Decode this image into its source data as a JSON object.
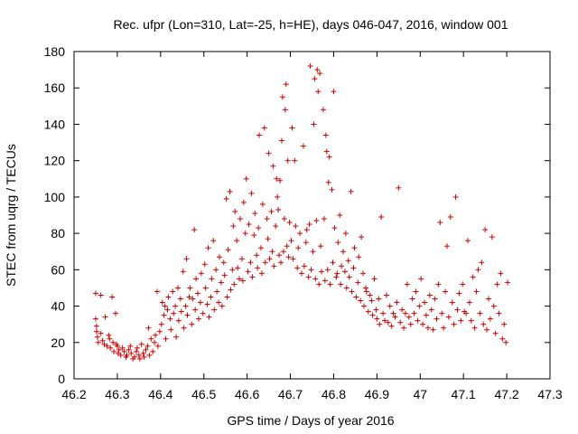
{
  "chart_data": {
    "type": "scatter",
    "title": "Rec. ufpr (Lon=310, Lat=-25, h=HE), days 046-047, 2016, window 001",
    "xlabel": "GPS time / Days of year 2016",
    "ylabel": "STEC from uqrg / TECUs",
    "xlim": [
      46.2,
      47.3
    ],
    "ylim": [
      0,
      180
    ],
    "xticks": [
      "46.2",
      "46.3",
      "46.4",
      "46.5",
      "46.6",
      "46.7",
      "46.8",
      "46.9",
      "47",
      "47.1",
      "47.2",
      "47.3"
    ],
    "yticks": [
      "0",
      "20",
      "40",
      "60",
      "80",
      "100",
      "120",
      "140",
      "160",
      "180"
    ],
    "marker": "+",
    "color": "#cc0000",
    "points": [
      [
        46.25,
        47
      ],
      [
        46.25,
        33
      ],
      [
        46.252,
        29
      ],
      [
        46.252,
        26
      ],
      [
        46.254,
        23
      ],
      [
        46.256,
        20
      ],
      [
        46.262,
        46
      ],
      [
        46.262,
        25
      ],
      [
        46.266,
        21
      ],
      [
        46.27,
        19
      ],
      [
        46.272,
        34
      ],
      [
        46.276,
        18
      ],
      [
        46.28,
        24
      ],
      [
        46.282,
        22
      ],
      [
        46.284,
        17
      ],
      [
        46.288,
        45
      ],
      [
        46.29,
        20
      ],
      [
        46.292,
        15
      ],
      [
        46.296,
        36
      ],
      [
        46.298,
        19
      ],
      [
        46.3,
        18
      ],
      [
        46.302,
        14
      ],
      [
        46.304,
        16
      ],
      [
        46.308,
        13
      ],
      [
        46.312,
        17
      ],
      [
        46.316,
        15
      ],
      [
        46.32,
        12
      ],
      [
        46.322,
        13
      ],
      [
        46.326,
        16
      ],
      [
        46.33,
        18
      ],
      [
        46.332,
        14
      ],
      [
        46.336,
        11
      ],
      [
        46.34,
        12
      ],
      [
        46.344,
        15
      ],
      [
        46.346,
        17
      ],
      [
        46.35,
        13
      ],
      [
        46.352,
        11
      ],
      [
        46.356,
        19
      ],
      [
        46.36,
        14
      ],
      [
        46.362,
        12
      ],
      [
        46.366,
        16
      ],
      [
        46.37,
        18
      ],
      [
        46.372,
        28
      ],
      [
        46.374,
        13
      ],
      [
        46.378,
        22
      ],
      [
        46.382,
        15
      ],
      [
        46.386,
        20
      ],
      [
        46.388,
        24
      ],
      [
        46.392,
        48
      ],
      [
        46.394,
        18
      ],
      [
        46.398,
        26
      ],
      [
        46.402,
        30
      ],
      [
        46.404,
        42
      ],
      [
        46.408,
        35
      ],
      [
        46.41,
        40
      ],
      [
        46.412,
        22
      ],
      [
        46.416,
        38
      ],
      [
        46.418,
        45
      ],
      [
        46.422,
        33
      ],
      [
        46.424,
        27
      ],
      [
        46.428,
        48
      ],
      [
        46.43,
        36
      ],
      [
        46.434,
        40
      ],
      [
        46.436,
        23
      ],
      [
        46.44,
        50
      ],
      [
        46.442,
        32
      ],
      [
        46.446,
        44
      ],
      [
        46.448,
        37
      ],
      [
        46.452,
        59
      ],
      [
        46.454,
        28
      ],
      [
        46.458,
        40
      ],
      [
        46.46,
        66
      ],
      [
        46.462,
        35
      ],
      [
        46.466,
        45
      ],
      [
        46.468,
        50
      ],
      [
        46.472,
        30
      ],
      [
        46.474,
        44
      ],
      [
        46.478,
        82
      ],
      [
        46.48,
        38
      ],
      [
        46.482,
        55
      ],
      [
        46.486,
        47
      ],
      [
        46.488,
        33
      ],
      [
        46.492,
        42
      ],
      [
        46.494,
        58
      ],
      [
        46.498,
        36
      ],
      [
        46.502,
        63
      ],
      [
        46.504,
        50
      ],
      [
        46.508,
        41
      ],
      [
        46.51,
        72
      ],
      [
        46.512,
        34
      ],
      [
        46.516,
        45
      ],
      [
        46.518,
        55
      ],
      [
        46.522,
        76
      ],
      [
        46.524,
        38
      ],
      [
        46.528,
        60
      ],
      [
        46.53,
        48
      ],
      [
        46.534,
        42
      ],
      [
        46.536,
        67
      ],
      [
        46.54,
        53
      ],
      [
        46.542,
        40
      ],
      [
        46.546,
        64
      ],
      [
        46.548,
        57
      ],
      [
        46.552,
        99
      ],
      [
        46.554,
        45
      ],
      [
        46.556,
        71
      ],
      [
        46.56,
        103
      ],
      [
        46.562,
        49
      ],
      [
        46.566,
        60
      ],
      [
        46.568,
        84
      ],
      [
        46.57,
        52
      ],
      [
        46.572,
        92
      ],
      [
        46.576,
        76
      ],
      [
        46.578,
        61
      ],
      [
        46.582,
        55
      ],
      [
        46.584,
        88
      ],
      [
        46.588,
        66
      ],
      [
        46.59,
        54
      ],
      [
        46.592,
        97
      ],
      [
        46.596,
        80
      ],
      [
        46.598,
        110
      ],
      [
        46.602,
        59
      ],
      [
        46.604,
        85
      ],
      [
        46.608,
        64
      ],
      [
        46.61,
        102
      ],
      [
        46.612,
        56
      ],
      [
        46.616,
        79
      ],
      [
        46.618,
        91
      ],
      [
        46.622,
        68
      ],
      [
        46.624,
        61
      ],
      [
        46.626,
        83
      ],
      [
        46.628,
        134
      ],
      [
        46.632,
        72
      ],
      [
        46.634,
        58
      ],
      [
        46.636,
        96
      ],
      [
        46.64,
        138
      ],
      [
        46.642,
        64
      ],
      [
        46.646,
        88
      ],
      [
        46.648,
        77
      ],
      [
        46.65,
        124
      ],
      [
        46.652,
        66
      ],
      [
        46.656,
        92
      ],
      [
        46.658,
        70
      ],
      [
        46.66,
        117
      ],
      [
        46.662,
        62
      ],
      [
        46.666,
        84
      ],
      [
        46.668,
        110
      ],
      [
        46.67,
        100
      ],
      [
        46.672,
        93
      ],
      [
        46.674,
        68
      ],
      [
        46.676,
        109
      ],
      [
        46.678,
        64
      ],
      [
        46.68,
        131
      ],
      [
        46.682,
        155
      ],
      [
        46.684,
        70
      ],
      [
        46.686,
        88
      ],
      [
        46.688,
        148
      ],
      [
        46.69,
        162
      ],
      [
        46.692,
        73
      ],
      [
        46.694,
        120
      ],
      [
        46.696,
        67
      ],
      [
        46.698,
        86
      ],
      [
        46.702,
        76
      ],
      [
        46.704,
        138
      ],
      [
        46.706,
        66
      ],
      [
        46.71,
        120
      ],
      [
        46.712,
        84
      ],
      [
        46.716,
        61
      ],
      [
        46.718,
        72
      ],
      [
        46.722,
        80
      ],
      [
        46.726,
        58
      ],
      [
        46.73,
        128
      ],
      [
        46.732,
        62
      ],
      [
        46.736,
        75
      ],
      [
        46.738,
        82
      ],
      [
        46.742,
        56
      ],
      [
        46.744,
        85
      ],
      [
        46.746,
        172
      ],
      [
        46.748,
        60
      ],
      [
        46.752,
        70
      ],
      [
        46.754,
        140
      ],
      [
        46.756,
        165
      ],
      [
        46.758,
        55
      ],
      [
        46.76,
        87
      ],
      [
        46.762,
        170
      ],
      [
        46.764,
        158
      ],
      [
        46.766,
        52
      ],
      [
        46.768,
        168
      ],
      [
        46.77,
        73
      ],
      [
        46.772,
        59
      ],
      [
        46.776,
        148
      ],
      [
        46.778,
        88
      ],
      [
        46.78,
        54
      ],
      [
        46.782,
        134
      ],
      [
        46.784,
        125
      ],
      [
        46.786,
        60
      ],
      [
        46.788,
        108
      ],
      [
        46.79,
        122
      ],
      [
        46.792,
        52
      ],
      [
        46.796,
        104
      ],
      [
        46.798,
        64
      ],
      [
        46.8,
        158
      ],
      [
        46.802,
        83
      ],
      [
        46.806,
        56
      ],
      [
        46.808,
        58
      ],
      [
        46.81,
        75
      ],
      [
        46.814,
        90
      ],
      [
        46.816,
        52
      ],
      [
        46.818,
        62
      ],
      [
        46.822,
        70
      ],
      [
        46.826,
        59
      ],
      [
        46.828,
        80
      ],
      [
        46.83,
        50
      ],
      [
        46.834,
        65
      ],
      [
        46.836,
        56
      ],
      [
        46.84,
        103
      ],
      [
        46.842,
        48
      ],
      [
        46.846,
        61
      ],
      [
        46.848,
        72
      ],
      [
        46.852,
        45
      ],
      [
        46.856,
        53
      ],
      [
        46.858,
        67
      ],
      [
        46.862,
        43
      ],
      [
        46.864,
        78
      ],
      [
        46.868,
        58
      ],
      [
        46.87,
        40
      ],
      [
        46.874,
        50
      ],
      [
        46.876,
        48
      ],
      [
        46.88,
        37
      ],
      [
        46.884,
        46
      ],
      [
        46.888,
        43
      ],
      [
        46.89,
        35
      ],
      [
        46.894,
        55
      ],
      [
        46.898,
        38
      ],
      [
        46.9,
        33
      ],
      [
        46.904,
        44
      ],
      [
        46.906,
        30
      ],
      [
        46.91,
        89
      ],
      [
        46.914,
        36
      ],
      [
        46.918,
        32
      ],
      [
        46.922,
        46
      ],
      [
        46.926,
        31
      ],
      [
        46.93,
        40
      ],
      [
        46.934,
        29
      ],
      [
        46.938,
        36
      ],
      [
        46.942,
        34
      ],
      [
        46.946,
        42
      ],
      [
        46.95,
        105
      ],
      [
        46.954,
        31
      ],
      [
        46.958,
        38
      ],
      [
        46.962,
        28
      ],
      [
        46.966,
        36
      ],
      [
        46.97,
        52
      ],
      [
        46.974,
        34
      ],
      [
        46.978,
        30
      ],
      [
        46.982,
        44
      ],
      [
        46.986,
        36
      ],
      [
        46.99,
        48
      ],
      [
        46.994,
        32
      ],
      [
        46.998,
        40
      ],
      [
        47.002,
        55
      ],
      [
        47.006,
        30
      ],
      [
        47.01,
        42
      ],
      [
        47.014,
        35
      ],
      [
        47.018,
        28
      ],
      [
        47.022,
        46
      ],
      [
        47.026,
        38
      ],
      [
        47.03,
        27
      ],
      [
        47.034,
        44
      ],
      [
        47.038,
        33
      ],
      [
        47.042,
        52
      ],
      [
        47.046,
        86
      ],
      [
        47.05,
        36
      ],
      [
        47.054,
        28
      ],
      [
        47.058,
        48
      ],
      [
        47.062,
        73
      ],
      [
        47.066,
        34
      ],
      [
        47.07,
        89
      ],
      [
        47.074,
        42
      ],
      [
        47.078,
        30
      ],
      [
        47.082,
        100
      ],
      [
        47.086,
        38
      ],
      [
        47.09,
        47
      ],
      [
        47.094,
        32
      ],
      [
        47.098,
        52
      ],
      [
        47.102,
        37
      ],
      [
        47.106,
        36
      ],
      [
        47.11,
        76
      ],
      [
        47.114,
        42
      ],
      [
        47.118,
        32
      ],
      [
        47.122,
        56
      ],
      [
        47.126,
        28
      ],
      [
        47.13,
        48
      ],
      [
        47.134,
        60
      ],
      [
        47.138,
        36
      ],
      [
        47.142,
        64
      ],
      [
        47.146,
        30
      ],
      [
        47.15,
        82
      ],
      [
        47.154,
        27
      ],
      [
        47.158,
        44
      ],
      [
        47.162,
        33
      ],
      [
        47.166,
        78
      ],
      [
        47.17,
        40
      ],
      [
        47.174,
        25
      ],
      [
        47.178,
        52
      ],
      [
        47.182,
        36
      ],
      [
        47.186,
        58
      ],
      [
        47.19,
        22
      ],
      [
        47.194,
        30
      ],
      [
        47.198,
        20
      ],
      [
        47.202,
        53
      ]
    ]
  }
}
